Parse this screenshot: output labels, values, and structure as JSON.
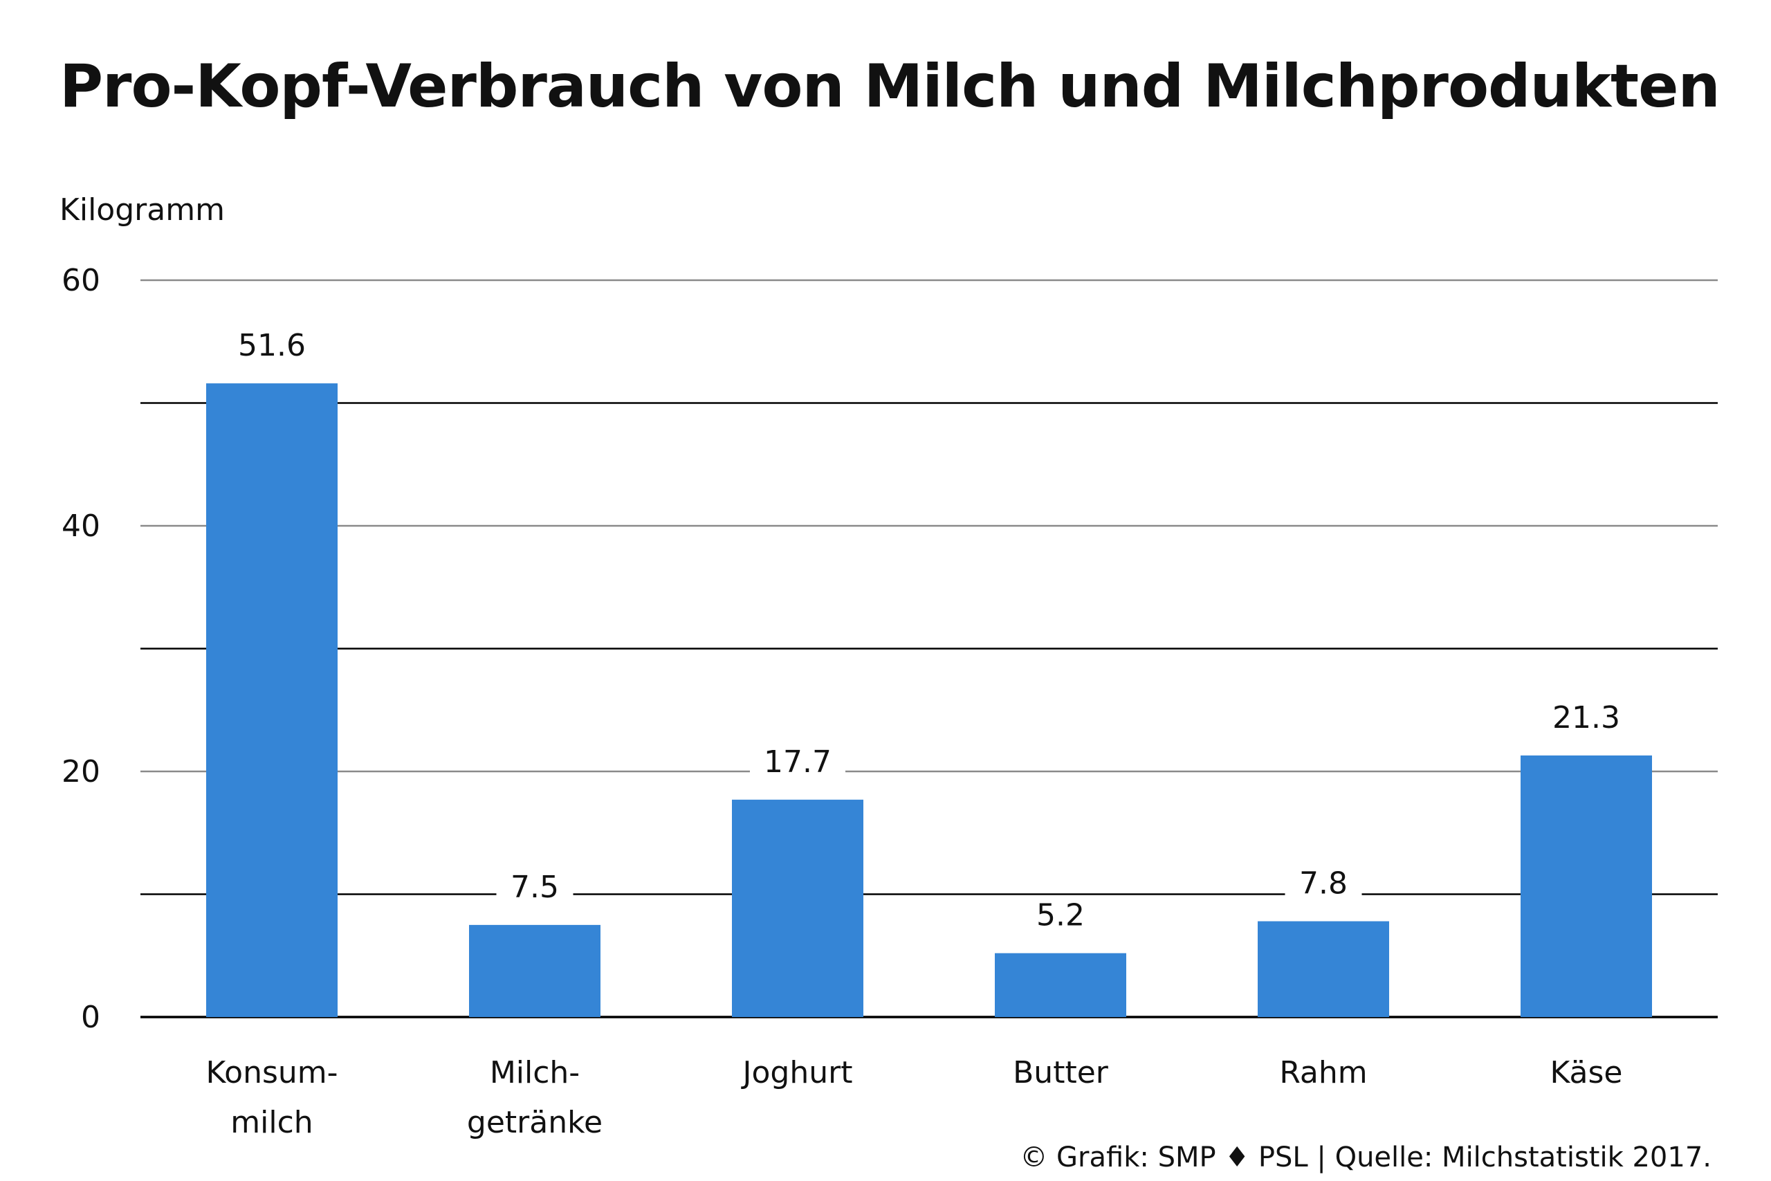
{
  "chart_data": {
    "type": "bar",
    "title": "Pro-Kopf-Verbrauch von Milch und Milchprodukten",
    "ylabel": "Kilogramm",
    "xlabel": "",
    "categories": [
      [
        "Konsum-",
        "milch"
      ],
      [
        "Milch-",
        "getränke"
      ],
      [
        "Joghurt"
      ],
      [
        "Butter"
      ],
      [
        "Rahm"
      ],
      [
        "Käse"
      ]
    ],
    "values": [
      51.6,
      7.5,
      17.7,
      5.2,
      7.8,
      21.3
    ],
    "value_labels": [
      "51.6",
      "7.5",
      "17.7",
      "5.2",
      "7.8",
      "21.3"
    ],
    "ylim": [
      0,
      60
    ],
    "y_ticks": [
      0,
      20,
      40,
      60
    ],
    "gridlines": [
      10,
      20,
      30,
      40,
      50,
      60
    ],
    "grid": true,
    "bar_color": "#3585d6",
    "major_grid_color": "#000000",
    "minor_grid_color": "#8a8a8a"
  },
  "footer": {
    "source": "© Grafik: SMP ♦ PSL | Quelle: Milchstatistik 2017."
  }
}
